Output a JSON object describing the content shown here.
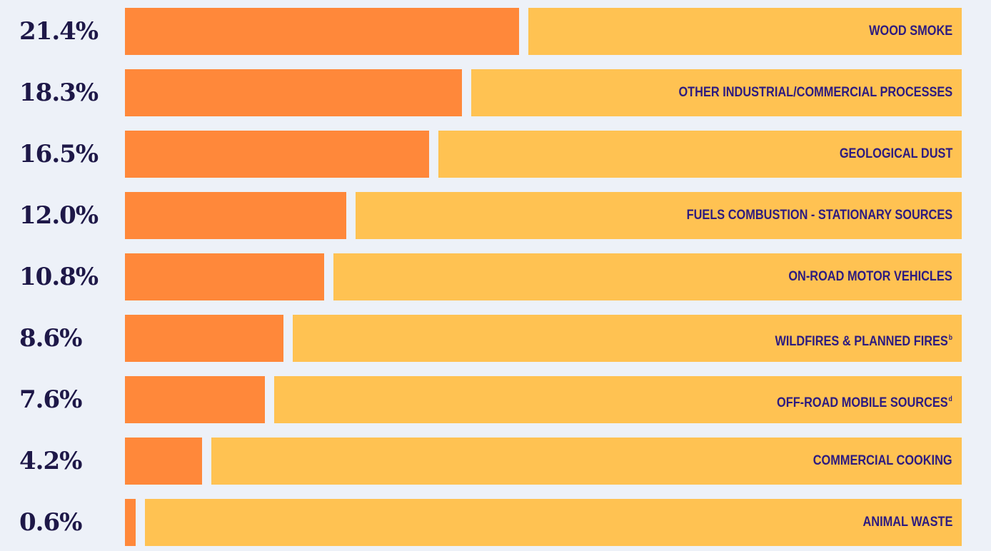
{
  "colors": {
    "background": "#EDF1F8",
    "share_fill": "#FF883A",
    "remainder_fill": "#FFC252",
    "value_text": "#1E1848",
    "label_text": "#2D1B80"
  },
  "chart_data": {
    "type": "bar",
    "orientation": "horizontal",
    "xlim": [
      0,
      100
    ],
    "value_unit": "%",
    "categories": [
      "WOOD SMOKE",
      "OTHER INDUSTRIAL/COMMERCIAL PROCESSES",
      "GEOLOGICAL DUST",
      "FUELS COMBUSTION - STATIONARY SOURCES",
      "ON-ROAD MOTOR VEHICLES",
      "WILDFIRES & PLANNED FIRES",
      "OFF-ROAD MOBILE SOURCES",
      "COMMERCIAL COOKING",
      "ANIMAL WASTE"
    ],
    "footnotes": [
      "",
      "",
      "",
      "",
      "",
      "b",
      "d",
      "",
      ""
    ],
    "values": [
      21.4,
      18.3,
      16.5,
      12.0,
      10.8,
      8.6,
      7.6,
      4.2,
      0.6
    ],
    "value_labels": [
      "21.4%",
      "18.3%",
      "16.5%",
      "12.0%",
      "10.8%",
      "8.6%",
      "7.6%",
      "4.2%",
      "0.6%"
    ]
  }
}
